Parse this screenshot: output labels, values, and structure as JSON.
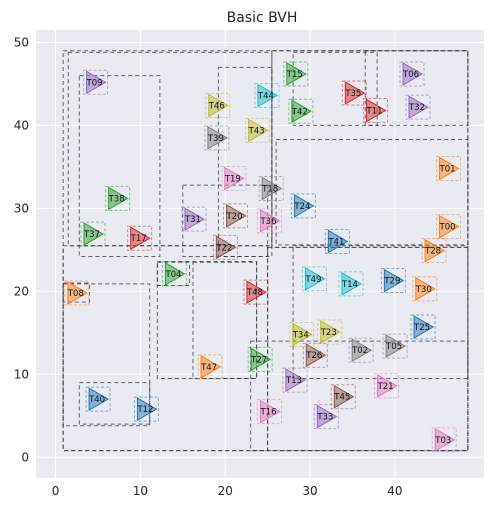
{
  "chart_data": {
    "type": "scatter",
    "title": "Basic BVH",
    "xlabel": "",
    "ylabel": "",
    "xlim": [
      -2.3,
      50.5
    ],
    "ylim": [
      -2.5,
      51.5
    ],
    "xticks": [
      0,
      10,
      20,
      30,
      40
    ],
    "yticks": [
      0,
      10,
      20,
      30,
      40,
      50
    ],
    "grid": true,
    "background": "#EAEAF2",
    "palette": [
      "#1f77b4",
      "#ff7f0e",
      "#2ca02c",
      "#d62728",
      "#9467bd",
      "#8c564b",
      "#e377c2",
      "#7f7f7f",
      "#bcbd22",
      "#17becf"
    ],
    "triangles": [
      {
        "label": "T00",
        "x": 46.2,
        "y": 27.8,
        "color": "#ff7f0e"
      },
      {
        "label": "T01",
        "x": 46.2,
        "y": 34.8,
        "color": "#ff7f0e"
      },
      {
        "label": "T02",
        "x": 35.9,
        "y": 12.9,
        "color": "#7f7f7f"
      },
      {
        "label": "T03",
        "x": 45.7,
        "y": 2.1,
        "color": "#e377c2"
      },
      {
        "label": "T04",
        "x": 13.9,
        "y": 22.1,
        "color": "#2ca02c"
      },
      {
        "label": "T05",
        "x": 39.9,
        "y": 13.4,
        "color": "#7f7f7f"
      },
      {
        "label": "T06",
        "x": 41.9,
        "y": 46.2,
        "color": "#9467bd"
      },
      {
        "label": "T08",
        "x": 2.4,
        "y": 19.8,
        "color": "#ff7f0e"
      },
      {
        "label": "T09",
        "x": 4.6,
        "y": 45.2,
        "color": "#9467bd"
      },
      {
        "label": "T11",
        "x": 37.6,
        "y": 41.8,
        "color": "#d62728"
      },
      {
        "label": "T12",
        "x": 10.6,
        "y": 5.8,
        "color": "#1f77b4"
      },
      {
        "label": "T13",
        "x": 28.1,
        "y": 9.3,
        "color": "#9467bd"
      },
      {
        "label": "T14",
        "x": 34.7,
        "y": 20.9,
        "color": "#17becf"
      },
      {
        "label": "T15",
        "x": 28.2,
        "y": 46.2,
        "color": "#2ca02c"
      },
      {
        "label": "T16",
        "x": 25.1,
        "y": 5.5,
        "color": "#e377c2"
      },
      {
        "label": "T17",
        "x": 9.8,
        "y": 26.4,
        "color": "#d62728"
      },
      {
        "label": "T18",
        "x": 25.3,
        "y": 32.4,
        "color": "#7f7f7f"
      },
      {
        "label": "T19",
        "x": 20.9,
        "y": 33.6,
        "color": "#e377c2"
      },
      {
        "label": "T20",
        "x": 21.1,
        "y": 29.1,
        "color": "#8c564b"
      },
      {
        "label": "T21",
        "x": 38.9,
        "y": 8.6,
        "color": "#e377c2"
      },
      {
        "label": "T22",
        "x": 19.9,
        "y": 25.3,
        "color": "#8c564b"
      },
      {
        "label": "T23",
        "x": 32.2,
        "y": 15.1,
        "color": "#bcbd22"
      },
      {
        "label": "T24",
        "x": 29.1,
        "y": 30.3,
        "color": "#1f77b4"
      },
      {
        "label": "T25",
        "x": 43.2,
        "y": 15.7,
        "color": "#1f77b4"
      },
      {
        "label": "T26",
        "x": 30.5,
        "y": 12.3,
        "color": "#8c564b"
      },
      {
        "label": "T27",
        "x": 24.0,
        "y": 11.8,
        "color": "#2ca02c"
      },
      {
        "label": "T28",
        "x": 44.5,
        "y": 24.9,
        "color": "#ff7f0e"
      },
      {
        "label": "T29",
        "x": 39.7,
        "y": 21.3,
        "color": "#1f77b4"
      },
      {
        "label": "T30",
        "x": 43.4,
        "y": 20.3,
        "color": "#ff7f0e"
      },
      {
        "label": "T31",
        "x": 16.2,
        "y": 28.7,
        "color": "#9467bd"
      },
      {
        "label": "T32",
        "x": 42.6,
        "y": 42.2,
        "color": "#9467bd"
      },
      {
        "label": "T33",
        "x": 31.8,
        "y": 4.9,
        "color": "#9467bd"
      },
      {
        "label": "T34",
        "x": 28.9,
        "y": 14.8,
        "color": "#bcbd22"
      },
      {
        "label": "T35",
        "x": 35.1,
        "y": 43.9,
        "color": "#d62728"
      },
      {
        "label": "T36",
        "x": 25.1,
        "y": 28.5,
        "color": "#e377c2"
      },
      {
        "label": "T37",
        "x": 4.3,
        "y": 26.9,
        "color": "#2ca02c"
      },
      {
        "label": "T38",
        "x": 7.2,
        "y": 31.2,
        "color": "#2ca02c"
      },
      {
        "label": "T39",
        "x": 18.9,
        "y": 38.5,
        "color": "#7f7f7f"
      },
      {
        "label": "T40",
        "x": 4.9,
        "y": 7.0,
        "color": "#1f77b4"
      },
      {
        "label": "T41",
        "x": 33.1,
        "y": 26.0,
        "color": "#1f77b4"
      },
      {
        "label": "T42",
        "x": 28.8,
        "y": 41.7,
        "color": "#2ca02c"
      },
      {
        "label": "T43",
        "x": 23.7,
        "y": 39.4,
        "color": "#bcbd22"
      },
      {
        "label": "T44",
        "x": 24.8,
        "y": 43.6,
        "color": "#17becf"
      },
      {
        "label": "T45",
        "x": 33.8,
        "y": 7.3,
        "color": "#8c564b"
      },
      {
        "label": "T46",
        "x": 19.0,
        "y": 42.4,
        "color": "#bcbd22"
      },
      {
        "label": "T47",
        "x": 18.1,
        "y": 10.9,
        "color": "#ff7f0e"
      },
      {
        "label": "T48",
        "x": 23.5,
        "y": 19.9,
        "color": "#d62728"
      },
      {
        "label": "T49",
        "x": 30.4,
        "y": 21.5,
        "color": "#17becf"
      }
    ],
    "boxes": [
      [
        0.9,
        0.8,
        48.6,
        49.0
      ],
      [
        0.9,
        0.8,
        25.0,
        25.5
      ],
      [
        25.0,
        0.8,
        48.6,
        25.3
      ],
      [
        1.5,
        25.5,
        25.5,
        48.8
      ],
      [
        25.5,
        25.3,
        48.6,
        49.0
      ],
      [
        0.9,
        3.8,
        11.1,
        20.9
      ],
      [
        12.0,
        9.5,
        23.7,
        23.6
      ],
      [
        2.8,
        4.0,
        11.1,
        9.0
      ],
      [
        0.9,
        18.7,
        4.0,
        21.0
      ],
      [
        12.0,
        20.7,
        15.8,
        23.5
      ],
      [
        16.2,
        9.5,
        23.7,
        23.5
      ],
      [
        23.0,
        0.8,
        48.6,
        14.0
      ],
      [
        28.0,
        9.5,
        48.6,
        25.5
      ],
      [
        2.8,
        24.2,
        12.3,
        46.0
      ],
      [
        15.0,
        24.2,
        25.0,
        32.8
      ],
      [
        19.2,
        24.2,
        25.5,
        47.0
      ],
      [
        26.0,
        25.6,
        48.6,
        38.3
      ],
      [
        28.0,
        40.0,
        37.9,
        48.8
      ],
      [
        36.5,
        40.0,
        48.6,
        49.0
      ]
    ]
  }
}
